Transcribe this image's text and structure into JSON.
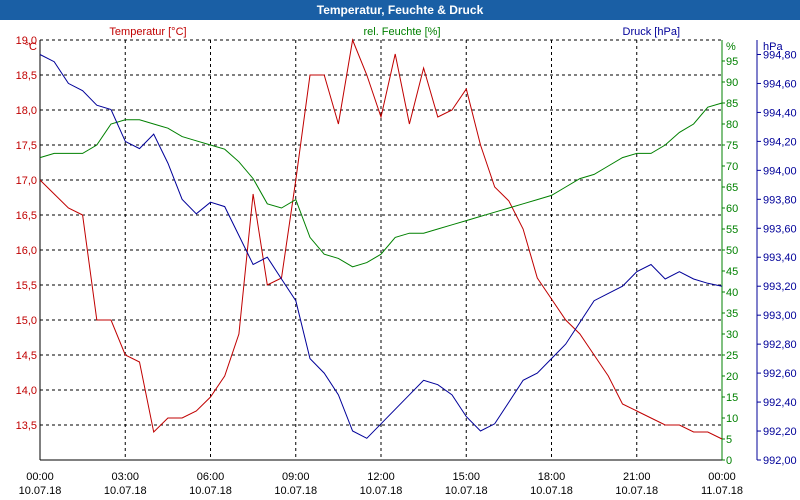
{
  "title": "Temperatur, Feuchte & Druck",
  "colors": {
    "title_bar": "#1a5fa5",
    "temperature": "#c00000",
    "humidity": "#008000",
    "pressure": "#000099",
    "grid": "#000000"
  },
  "chart_data": {
    "type": "line",
    "grid": true,
    "grid_style": "dashed",
    "x_ticks": [
      {
        "time": "00:00",
        "date": "10.07.18"
      },
      {
        "time": "03:00",
        "date": "10.07.18"
      },
      {
        "time": "06:00",
        "date": "10.07.18"
      },
      {
        "time": "09:00",
        "date": "10.07.18"
      },
      {
        "time": "12:00",
        "date": "10.07.18"
      },
      {
        "time": "15:00",
        "date": "10.07.18"
      },
      {
        "time": "18:00",
        "date": "10.07.18"
      },
      {
        "time": "21:00",
        "date": "10.07.18"
      },
      {
        "time": "00:00",
        "date": "11.07.18"
      }
    ],
    "x_hours": [
      0,
      0.5,
      1,
      1.5,
      2,
      2.5,
      3,
      3.5,
      4,
      4.5,
      5,
      5.5,
      6,
      6.5,
      7,
      7.5,
      8,
      8.5,
      9,
      9.5,
      10,
      10.5,
      11,
      11.5,
      12,
      12.5,
      13,
      13.5,
      14,
      14.5,
      15,
      15.5,
      16,
      16.5,
      17,
      17.5,
      18,
      18.5,
      19,
      19.5,
      20,
      20.5,
      21,
      21.5,
      22,
      22.5,
      23,
      23.5,
      24
    ],
    "axes": {
      "temperature": {
        "label": "Temperatur [°C]",
        "unit": "°C",
        "min": 13.0,
        "max": 19.0,
        "ticks": [
          "13,5",
          "14,0",
          "14,5",
          "15,0",
          "15,5",
          "16,0",
          "16,5",
          "17,0",
          "17,5",
          "18,0",
          "18,5",
          "19,0"
        ],
        "tick_values": [
          13.5,
          14.0,
          14.5,
          15.0,
          15.5,
          16.0,
          16.5,
          17.0,
          17.5,
          18.0,
          18.5,
          19.0
        ]
      },
      "humidity": {
        "label": "rel. Feuchte [%]",
        "unit": "%",
        "min": 0,
        "max": 100,
        "ticks": [
          "0",
          "5",
          "10",
          "15",
          "20",
          "25",
          "30",
          "35",
          "40",
          "45",
          "50",
          "55",
          "60",
          "65",
          "70",
          "75",
          "80",
          "85",
          "90",
          "95"
        ],
        "tick_values": [
          0,
          5,
          10,
          15,
          20,
          25,
          30,
          35,
          40,
          45,
          50,
          55,
          60,
          65,
          70,
          75,
          80,
          85,
          90,
          95
        ]
      },
      "pressure": {
        "label": "Druck [hPa]",
        "unit": "hPa",
        "min": 992.0,
        "max": 994.9,
        "ticks": [
          "992,00",
          "992,20",
          "992,40",
          "992,60",
          "992,80",
          "993,00",
          "993,20",
          "993,40",
          "993,60",
          "993,80",
          "994,00",
          "994,20",
          "994,40",
          "994,60",
          "994,80"
        ],
        "tick_values": [
          992.0,
          992.2,
          992.4,
          992.6,
          992.8,
          993.0,
          993.2,
          993.4,
          993.6,
          993.8,
          994.0,
          994.2,
          994.4,
          994.6,
          994.8
        ]
      }
    },
    "series": [
      {
        "name": "Temperatur [°C]",
        "axis": "temperature",
        "color": "#c00000",
        "values": [
          17.0,
          16.8,
          16.6,
          16.5,
          15.0,
          15.0,
          14.5,
          14.4,
          13.4,
          13.6,
          13.6,
          13.7,
          13.9,
          14.2,
          14.8,
          16.8,
          15.5,
          15.6,
          17.0,
          18.5,
          18.5,
          17.8,
          19.0,
          18.5,
          17.9,
          18.8,
          17.8,
          18.6,
          17.9,
          18.0,
          18.3,
          17.5,
          16.9,
          16.7,
          16.3,
          15.6,
          15.3,
          15.0,
          14.8,
          14.5,
          14.2,
          13.8,
          13.7,
          13.6,
          13.5,
          13.5,
          13.4,
          13.4,
          13.3
        ]
      },
      {
        "name": "rel. Feuchte [%]",
        "axis": "humidity",
        "color": "#008000",
        "values": [
          72,
          73,
          73,
          73,
          75,
          80,
          81,
          81,
          80,
          79,
          77,
          76,
          75,
          74,
          71,
          67,
          61,
          60,
          62,
          53,
          49,
          48,
          46,
          47,
          49,
          53,
          54,
          54,
          55,
          56,
          57,
          58,
          59,
          60,
          61,
          62,
          63,
          65,
          67,
          68,
          70,
          72,
          73,
          73,
          75,
          78,
          80,
          84,
          85
        ]
      },
      {
        "name": "Druck [hPa]",
        "axis": "pressure",
        "color": "#000099",
        "values": [
          994.8,
          994.75,
          994.6,
          994.55,
          994.45,
          994.42,
          994.2,
          994.15,
          994.25,
          994.05,
          993.8,
          993.7,
          993.78,
          993.75,
          993.55,
          993.35,
          993.4,
          993.25,
          993.1,
          992.7,
          992.6,
          992.45,
          992.2,
          992.15,
          992.25,
          992.35,
          992.45,
          992.55,
          992.52,
          992.45,
          992.3,
          992.2,
          992.25,
          992.4,
          992.55,
          992.6,
          992.7,
          992.8,
          992.95,
          993.1,
          993.15,
          993.2,
          993.3,
          993.35,
          993.25,
          993.3,
          993.25,
          993.22,
          993.2
        ]
      }
    ]
  }
}
